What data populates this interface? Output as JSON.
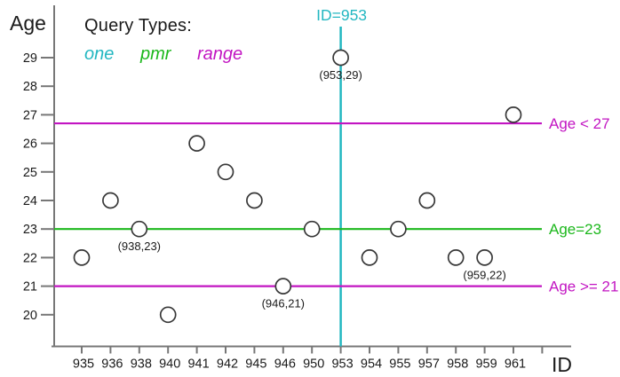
{
  "legend": {
    "title": "Query Types:",
    "items": [
      {
        "name": "one",
        "label": "one",
        "color": "#23b7c1"
      },
      {
        "name": "pmr",
        "label": "pmr",
        "color": "#1db81d"
      },
      {
        "name": "range",
        "label": "range",
        "color": "#c215c2"
      }
    ]
  },
  "chart_data": {
    "type": "scatter",
    "title": "",
    "xlabel": "ID",
    "ylabel": "Age",
    "x_categories": [
      "935",
      "936",
      "938",
      "940",
      "941",
      "942",
      "945",
      "946",
      "950",
      "953",
      "954",
      "955",
      "957",
      "958",
      "959",
      "961"
    ],
    "y_ticks": [
      29,
      28,
      27,
      26,
      25,
      24,
      23,
      22,
      21,
      20
    ],
    "ylim": [
      19.5,
      29.9
    ],
    "grid": false,
    "marker": {
      "shape": "open-circle",
      "stroke": "#383838",
      "fill": "#ffffff"
    },
    "axis_color": "#777777",
    "text_color": "#1a1a1a",
    "points": [
      {
        "id": "935",
        "age": 22
      },
      {
        "id": "936",
        "age": 24
      },
      {
        "id": "938",
        "age": 23
      },
      {
        "id": "940",
        "age": 20
      },
      {
        "id": "941",
        "age": 26
      },
      {
        "id": "942",
        "age": 25
      },
      {
        "id": "945",
        "age": 24
      },
      {
        "id": "946",
        "age": 21
      },
      {
        "id": "950",
        "age": 23
      },
      {
        "id": "953",
        "age": 29
      },
      {
        "id": "954",
        "age": 22
      },
      {
        "id": "955",
        "age": 23
      },
      {
        "id": "957",
        "age": 24
      },
      {
        "id": "958",
        "age": 22
      },
      {
        "id": "959",
        "age": 22
      },
      {
        "id": "961",
        "age": 27
      }
    ],
    "point_labels": [
      {
        "text": "(938,23)",
        "id": "938",
        "age": 23
      },
      {
        "text": "(946,21)",
        "id": "946",
        "age": 21
      },
      {
        "text": "(953,29)",
        "id": "953",
        "age": 29
      },
      {
        "text": "(959,22)",
        "id": "959",
        "age": 22
      }
    ],
    "query_lines": [
      {
        "query_type": "one",
        "orientation": "vertical",
        "id": "953",
        "label": "ID=953",
        "color": "#23b7c1"
      },
      {
        "query_type": "range",
        "orientation": "horizontal",
        "age": 26.7,
        "label": "Age < 27",
        "color": "#c215c2"
      },
      {
        "query_type": "pmr",
        "orientation": "horizontal",
        "age": 23,
        "label": "Age=23",
        "color": "#1db81d"
      },
      {
        "query_type": "range",
        "orientation": "horizontal",
        "age": 21,
        "label": "Age >= 21",
        "color": "#c215c2"
      }
    ]
  }
}
